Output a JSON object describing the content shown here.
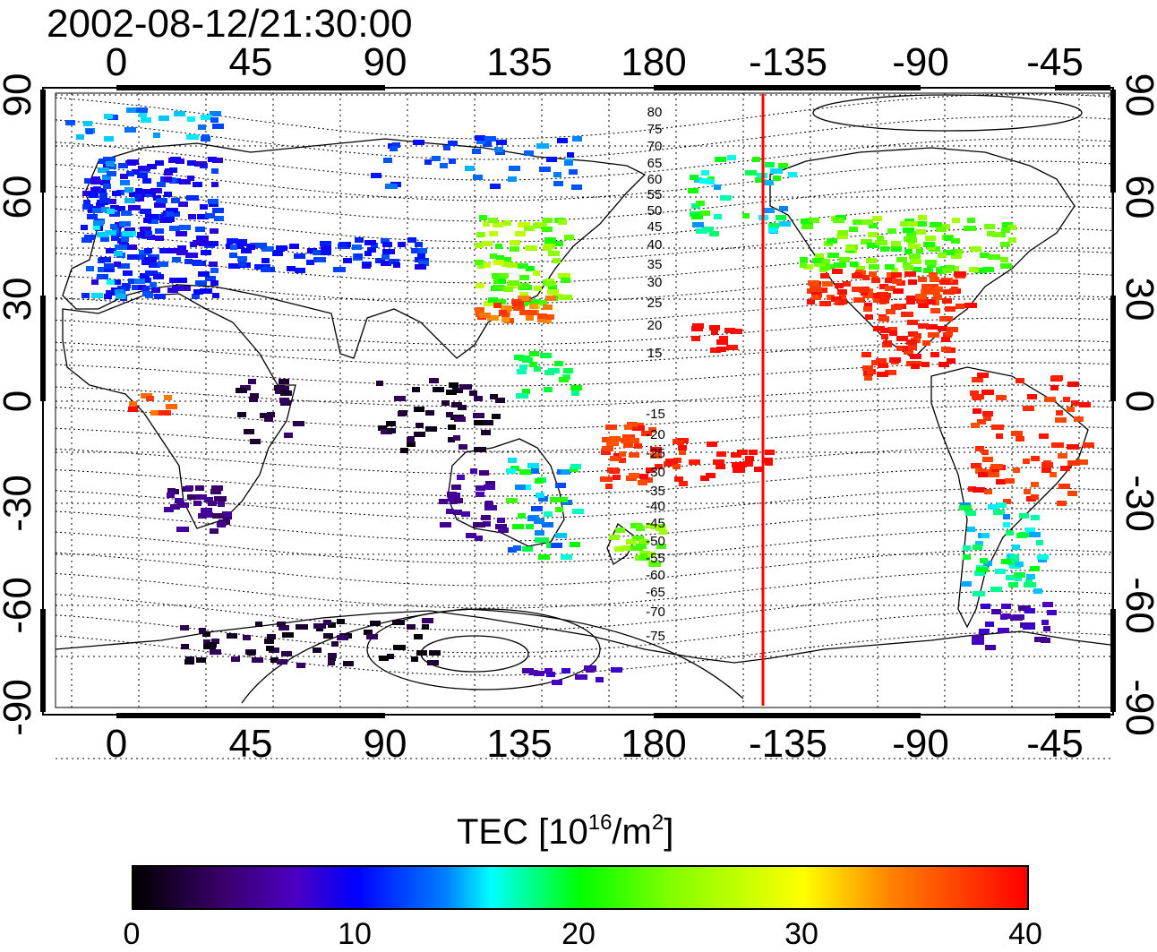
{
  "title": "2002-08-12/21:30:00",
  "map": {
    "top_axis_labels": [
      "0",
      "45",
      "90",
      "135",
      "180",
      "-135",
      "-90",
      "-45"
    ],
    "bottom_axis_labels": [
      "0",
      "45",
      "90",
      "135",
      "180",
      "-135",
      "-90",
      "-45"
    ],
    "left_axis_labels": [
      "90",
      "60",
      "30",
      "0",
      "-30",
      "-60",
      "-90"
    ],
    "right_axis_labels": [
      "90",
      "60",
      "30",
      "0",
      "-30",
      "-60",
      "-90"
    ],
    "contour_labels_north": [
      "80",
      "75",
      "70",
      "65",
      "60",
      "55",
      "50",
      "45",
      "40",
      "35",
      "30",
      "25",
      "20",
      "15"
    ],
    "contour_labels_south": [
      "-15",
      "-20",
      "-25",
      "-30",
      "-35",
      "-40",
      "-45",
      "-50",
      "-55",
      "-60",
      "-65",
      "-70",
      "-75"
    ],
    "terminator_color": "#ff0000",
    "grid": "dotted"
  },
  "colorbar": {
    "title_prefix": "TEC  [10",
    "title_exp1": "16",
    "title_mid": "/m",
    "title_exp2": "2",
    "title_suffix": "]",
    "ticks": [
      "0",
      "10",
      "20",
      "30",
      "40"
    ],
    "range": [
      0,
      40
    ]
  }
}
